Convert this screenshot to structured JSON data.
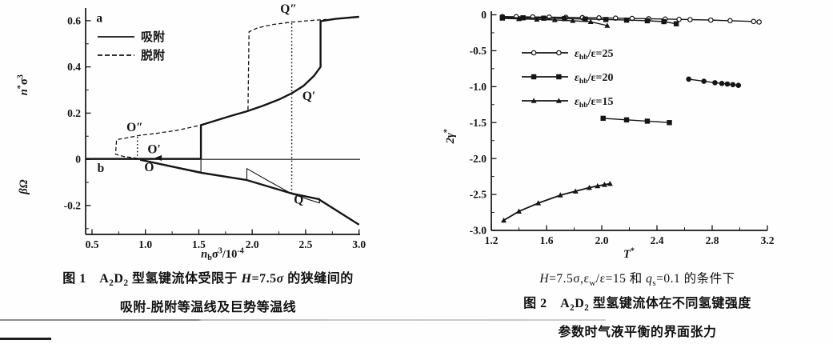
{
  "page": {
    "background": "#fefefe",
    "ink": "#151515"
  },
  "figure1": {
    "caption_rich": [
      [
        {
          "t": "图 1　A",
          "b": 1
        },
        {
          "t": "2",
          "b": 1,
          "sub": 1
        },
        {
          "t": "D",
          "b": 1
        },
        {
          "t": "2",
          "b": 1,
          "sub": 1
        },
        {
          "t": " 型氢键流体受限于 ",
          "b": 1
        },
        {
          "t": "H",
          "b": 1,
          "i": 1
        },
        {
          "t": "=7.5",
          "b": 1
        },
        {
          "t": "σ",
          "b": 1,
          "i": 1
        },
        {
          "t": " 的狭缝间的",
          "b": 1
        }
      ],
      [
        {
          "t": "吸附-脱附等温线及巨势等温线",
          "b": 1
        }
      ]
    ]
  },
  "figure2": {
    "caption_rich": [
      [
        {
          "t": "H",
          "i": 1
        },
        {
          "t": "=7.5σ,ε"
        },
        {
          "t": "w",
          "sub": 1
        },
        {
          "t": "/ε=15 和 "
        },
        {
          "t": "q",
          "i": 1
        },
        {
          "t": "s",
          "sub": 1
        },
        {
          "t": "=0.1 的条件下"
        }
      ],
      [
        {
          "t": "图 2　A",
          "b": 1
        },
        {
          "t": "2",
          "b": 1,
          "sub": 1
        },
        {
          "t": "D",
          "b": 1
        },
        {
          "t": "2",
          "b": 1,
          "sub": 1
        },
        {
          "t": " 型氢键流体在不同氢键强度",
          "b": 1
        }
      ],
      [
        {
          "t": "参数时气液平衡的界面张力",
          "b": 1
        }
      ]
    ]
  },
  "chart_data": [
    {
      "type": "line",
      "title": "图1 A2D2 型氢键流体受限于 H=7.5σ 的狭缝间的吸附-脱附等温线及巨势等温线",
      "xlabel_rich": [
        {
          "t": "n",
          "i": 1
        },
        {
          "t": "b",
          "sub": 1
        },
        {
          "t": "σ"
        },
        {
          "t": "3",
          "sup": 1
        },
        {
          "t": "/10"
        },
        {
          "t": "-4",
          "sup": 1
        }
      ],
      "ylabels_rich": [
        {
          "frac": 0.34,
          "segs": [
            {
              "t": "n",
              "i": 1
            },
            {
              "t": "*",
              "sup": 1
            },
            {
              "t": "σ"
            },
            {
              "t": "3",
              "sup": 1
            }
          ]
        },
        {
          "frac": 0.79,
          "segs": [
            {
              "t": "βΩ",
              "i": 1
            }
          ]
        }
      ],
      "xlim": [
        0.44,
        3.01
      ],
      "ylim": [
        -0.325,
        0.655
      ],
      "grid": false,
      "zero_line": true,
      "xticks": [
        {
          "v": 0.5,
          "label": "0.5"
        },
        {
          "v": 1.0,
          "label": "1.0"
        },
        {
          "v": 1.5,
          "label": "1.5"
        },
        {
          "v": 2.0,
          "label": "2.0"
        },
        {
          "v": 2.5,
          "label": "2.5"
        },
        {
          "v": 3.0,
          "label": "3.0"
        }
      ],
      "xminor": [
        0.75,
        1.25,
        1.75,
        2.25,
        2.75
      ],
      "yticks": [
        {
          "v": 0.6,
          "label": "0.6"
        },
        {
          "v": 0.4,
          "label": "0.4"
        },
        {
          "v": 0.2,
          "label": "0.2"
        },
        {
          "v": 0,
          "label": "0"
        },
        {
          "v": -0.2,
          "label": "-0.2"
        }
      ],
      "yminor": [
        0.5,
        0.3,
        0.1,
        -0.1,
        -0.3
      ],
      "legend": {
        "entries": [
          {
            "label_rich": [
              {
                "t": "吸附"
              }
            ],
            "dash": "",
            "marker": "none"
          },
          {
            "label_rich": [
              {
                "t": "脱附"
              }
            ],
            "dash": "6 3",
            "marker": "none"
          }
        ]
      },
      "annotations": [
        {
          "text": "a",
          "x": 0.54,
          "y": 0.595,
          "anchor": "start"
        },
        {
          "text": "b",
          "x": 0.55,
          "y": -0.055,
          "anchor": "start"
        },
        {
          "text": "O″",
          "x": 0.9,
          "y": 0.122,
          "anchor": "middle"
        },
        {
          "text": "O′",
          "x": 1.02,
          "y": 0.027,
          "anchor": "start"
        },
        {
          "text": "O",
          "x": 0.99,
          "y": -0.052,
          "anchor": "start"
        },
        {
          "text": "Q″",
          "x": 2.34,
          "y": 0.634,
          "anchor": "middle"
        },
        {
          "text": "Q′",
          "x": 2.47,
          "y": 0.256,
          "anchor": "start"
        },
        {
          "text": "Q",
          "x": 2.39,
          "y": -0.192,
          "anchor": "start"
        }
      ],
      "guides": [
        {
          "x": 0.925,
          "y1": 0.0,
          "y2": 0.103
        },
        {
          "x": 2.37,
          "y1": -0.148,
          "y2": 0.6
        }
      ],
      "arrows": [
        {
          "x": 1.1,
          "y": 0.006,
          "dir": "left"
        }
      ],
      "series": [
        {
          "name": "吸附等温线",
          "dash": "",
          "w": 2.4,
          "marker": "none",
          "pts": [
            [
              0.44,
              0.002
            ],
            [
              1.52,
              0.002
            ],
            [
              1.52,
              0.148
            ],
            [
              1.66,
              0.168
            ],
            [
              1.8,
              0.188
            ],
            [
              1.95,
              0.208
            ],
            [
              2.1,
              0.232
            ],
            [
              2.25,
              0.259
            ],
            [
              2.37,
              0.286
            ],
            [
              2.48,
              0.318
            ],
            [
              2.58,
              0.362
            ],
            [
              2.64,
              0.4
            ],
            [
              2.64,
              0.598
            ],
            [
              2.78,
              0.608
            ],
            [
              3.0,
              0.617
            ]
          ]
        },
        {
          "name": "脱附等温线",
          "dash": "5 3",
          "w": 1.3,
          "marker": "none",
          "pts": [
            [
              3.0,
              0.617
            ],
            [
              2.78,
              0.608
            ],
            [
              2.55,
              0.601
            ],
            [
              2.37,
              0.594
            ],
            [
              2.2,
              0.584
            ],
            [
              2.05,
              0.569
            ],
            [
              1.97,
              0.552
            ],
            [
              1.96,
              0.21
            ],
            [
              1.8,
              0.188
            ],
            [
              1.66,
              0.168
            ],
            [
              1.52,
              0.148
            ],
            [
              1.3,
              0.126
            ],
            [
              1.1,
              0.112
            ],
            [
              0.95,
              0.104
            ],
            [
              0.84,
              0.094
            ],
            [
              0.73,
              0.085
            ],
            [
              0.72,
              0.022
            ],
            [
              0.8,
              0.012
            ],
            [
              0.97,
              0.002
            ]
          ]
        },
        {
          "name": "巨势等温线(主支)",
          "dash": "",
          "w": 2.4,
          "marker": "none",
          "pts": [
            [
              0.95,
              -0.002
            ],
            [
              1.52,
              -0.058
            ],
            [
              1.95,
              -0.09
            ],
            [
              2.37,
              -0.148
            ],
            [
              2.62,
              -0.172
            ],
            [
              3.0,
              -0.283
            ]
          ]
        },
        {
          "name": "巨势亚稳支1",
          "dash": "",
          "w": 1.1,
          "marker": "none",
          "pts": [
            [
              0.97,
              -0.004
            ],
            [
              1.52,
              -0.055
            ],
            [
              1.52,
              -0.003
            ]
          ]
        },
        {
          "name": "巨势亚稳支2",
          "dash": "",
          "w": 1.1,
          "marker": "none",
          "pts": [
            [
              1.95,
              -0.088
            ],
            [
              1.95,
              -0.04
            ],
            [
              2.15,
              -0.093
            ],
            [
              2.37,
              -0.149
            ],
            [
              2.52,
              -0.173
            ],
            [
              2.63,
              -0.189
            ],
            [
              2.63,
              -0.168
            ]
          ]
        }
      ]
    },
    {
      "type": "line",
      "title": "图2 A2D2 型氢键流体在不同氢键强度参数时气液平衡的界面张力",
      "xlabel_rich": [
        {
          "t": "T",
          "i": 1
        },
        {
          "t": "*",
          "sup": 1
        }
      ],
      "ylabels_rich": [
        {
          "frac": 0.57,
          "segs": [
            {
              "t": "2γ",
              "i": 1
            },
            {
              "t": "*",
              "sup": 1
            }
          ]
        }
      ],
      "xlim": [
        1.2,
        3.2
      ],
      "ylim": [
        -3.0,
        0.05
      ],
      "grid": false,
      "zero_line": false,
      "xticks": [
        {
          "v": 1.2,
          "label": "1.2"
        },
        {
          "v": 1.6,
          "label": "1.6"
        },
        {
          "v": 2.0,
          "label": "2.0"
        },
        {
          "v": 2.4,
          "label": "2.4"
        },
        {
          "v": 2.8,
          "label": "2.8"
        },
        {
          "v": 3.2,
          "label": "3.2"
        }
      ],
      "xminor": [
        1.4,
        1.8,
        2.2,
        2.6,
        3.0
      ],
      "yticks": [
        {
          "v": 0,
          "label": "0"
        },
        {
          "v": -0.5,
          "label": "-0.5"
        },
        {
          "v": -1.0,
          "label": "-1.0"
        },
        {
          "v": -1.5,
          "label": "-1.5"
        },
        {
          "v": -2.0,
          "label": "-2.0"
        },
        {
          "v": -2.5,
          "label": "-2.5"
        },
        {
          "v": -3.0,
          "label": "-3.0"
        }
      ],
      "yminor": [
        -0.25,
        -0.75,
        -1.25,
        -1.75,
        -2.25,
        -2.75
      ],
      "legend": {
        "entries": [
          {
            "label_rich": [
              {
                "t": "ε",
                "i": 1
              },
              {
                "t": "hb",
                "sub": 1
              },
              {
                "t": "/ε=25"
              }
            ],
            "dash": "",
            "marker": "circle",
            "open": true
          },
          {
            "label_rich": [
              {
                "t": "ε",
                "i": 1
              },
              {
                "t": "hb",
                "sub": 1
              },
              {
                "t": "/ε=20"
              }
            ],
            "dash": "",
            "marker": "square",
            "open": false
          },
          {
            "label_rich": [
              {
                "t": "ε",
                "i": 1
              },
              {
                "t": "hb",
                "sub": 1
              },
              {
                "t": "/ε=15"
              }
            ],
            "dash": "",
            "marker": "triangle",
            "open": false
          }
        ]
      },
      "annotations": [],
      "guides": [],
      "arrows": [],
      "series": [
        {
          "name": "εhb/ε=25 气相支",
          "dash": "",
          "w": 1.4,
          "marker": "circle",
          "open": true,
          "pts": [
            [
              1.28,
              -0.025
            ],
            [
              1.38,
              -0.027
            ],
            [
              1.5,
              -0.03
            ],
            [
              1.62,
              -0.033
            ],
            [
              1.74,
              -0.036
            ],
            [
              1.86,
              -0.04
            ],
            [
              1.98,
              -0.043
            ],
            [
              2.1,
              -0.047
            ],
            [
              2.22,
              -0.051
            ],
            [
              2.34,
              -0.055
            ],
            [
              2.46,
              -0.059
            ],
            [
              2.56,
              -0.063
            ],
            [
              2.64,
              -0.067
            ],
            [
              2.79,
              -0.074
            ],
            [
              2.93,
              -0.082
            ],
            [
              3.1,
              -0.093
            ],
            [
              3.14,
              -0.1
            ]
          ]
        },
        {
          "name": "εhb/ε=25 液相支",
          "dash": "",
          "w": 1.4,
          "marker": "circle",
          "open": false,
          "pts": [
            [
              2.63,
              -0.895
            ],
            [
              2.74,
              -0.925
            ],
            [
              2.82,
              -0.945
            ],
            [
              2.87,
              -0.955
            ],
            [
              2.91,
              -0.963
            ],
            [
              2.95,
              -0.972
            ],
            [
              2.99,
              -0.982
            ]
          ]
        },
        {
          "name": "εhb/ε=20 气相支",
          "dash": "",
          "w": 1.4,
          "marker": "square",
          "open": false,
          "pts": [
            [
              1.28,
              -0.038
            ],
            [
              1.43,
              -0.042
            ],
            [
              1.58,
              -0.047
            ],
            [
              1.73,
              -0.053
            ],
            [
              1.88,
              -0.059
            ],
            [
              2.03,
              -0.066
            ],
            [
              2.18,
              -0.074
            ],
            [
              2.33,
              -0.083
            ],
            [
              2.45,
              -0.095
            ],
            [
              2.54,
              -0.125
            ]
          ]
        },
        {
          "name": "εhb/ε=20 液相支",
          "dash": "",
          "w": 1.4,
          "marker": "square",
          "open": false,
          "pts": [
            [
              2.01,
              -1.44
            ],
            [
              2.18,
              -1.462
            ],
            [
              2.33,
              -1.48
            ],
            [
              2.49,
              -1.5
            ]
          ]
        },
        {
          "name": "εhb/ε=15 气相支",
          "dash": "",
          "w": 1.4,
          "marker": "triangle",
          "open": false,
          "pts": [
            [
              1.28,
              -0.05
            ],
            [
              1.4,
              -0.056
            ],
            [
              1.53,
              -0.063
            ],
            [
              1.66,
              -0.071
            ],
            [
              1.79,
              -0.082
            ],
            [
              1.92,
              -0.097
            ],
            [
              2.04,
              -0.15
            ]
          ]
        },
        {
          "name": "εhb/ε=15 液相支",
          "dash": "",
          "w": 1.8,
          "marker": "triangle",
          "open": false,
          "pts": [
            [
              1.29,
              -2.86
            ],
            [
              1.4,
              -2.735
            ],
            [
              1.54,
              -2.62
            ],
            [
              1.7,
              -2.51
            ],
            [
              1.81,
              -2.455
            ],
            [
              1.91,
              -2.405
            ],
            [
              1.97,
              -2.382
            ],
            [
              2.02,
              -2.363
            ],
            [
              2.06,
              -2.35
            ]
          ]
        }
      ]
    }
  ]
}
